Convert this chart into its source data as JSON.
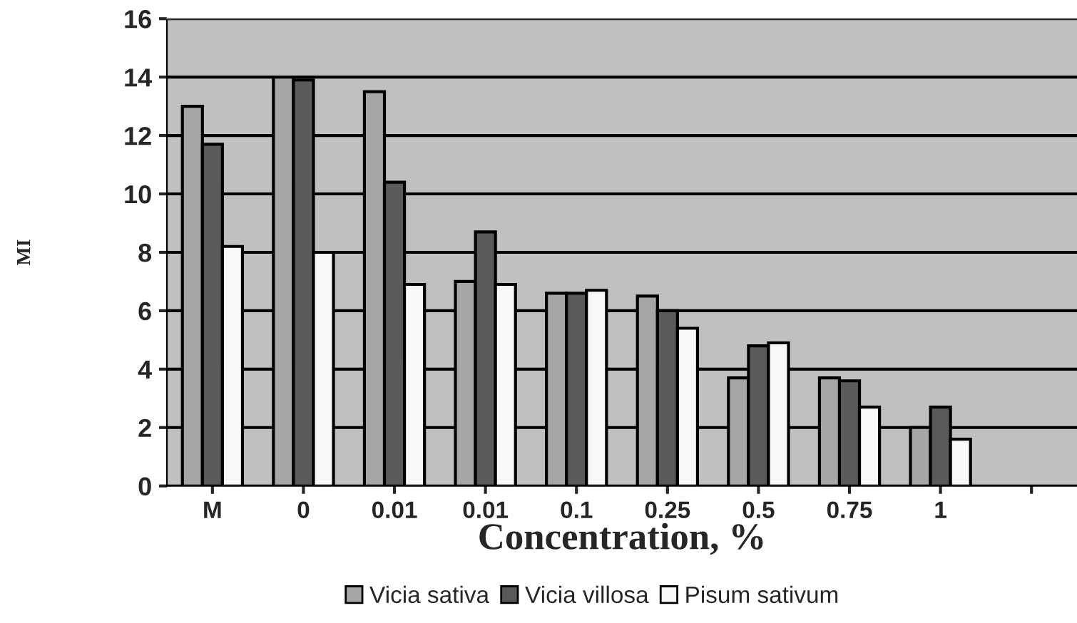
{
  "chart_data": {
    "type": "bar",
    "xlabel": "Concentration, %",
    "ylabel": "MI",
    "categories": [
      "M",
      "0",
      "0.01",
      "0.01",
      "0.1",
      "0.25",
      "0.5",
      "0.75",
      "1",
      null
    ],
    "series": [
      {
        "name": "Vicia sativa",
        "color": "#a6a6a6",
        "values": [
          13,
          14,
          13.5,
          7,
          6.6,
          6.5,
          3.7,
          3.7,
          2.0,
          null
        ]
      },
      {
        "name": "Vicia villosa",
        "color": "#5a5a5a",
        "values": [
          11.7,
          13.9,
          10.4,
          8.7,
          6.6,
          6.0,
          4.8,
          3.6,
          2.7,
          null
        ]
      },
      {
        "name": "Pisum sativum",
        "color": "#f8f8f8",
        "values": [
          8.2,
          8.0,
          6.9,
          6.9,
          6.7,
          5.4,
          4.9,
          2.7,
          1.6,
          null
        ]
      }
    ],
    "ylim": [
      0,
      16
    ],
    "yticks": [
      0,
      2,
      4,
      6,
      8,
      10,
      12,
      14,
      16
    ],
    "grid": "y",
    "legend": "bottom"
  }
}
